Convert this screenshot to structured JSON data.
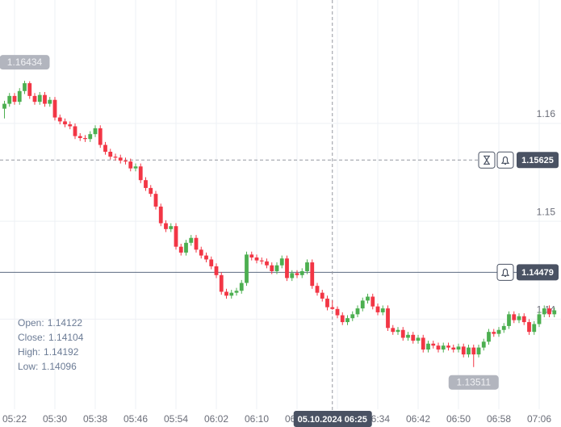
{
  "chart_data": {
    "type": "candlestick",
    "categories": [
      null,
      null,
      "05:22",
      null,
      null,
      null,
      null,
      null,
      null,
      null,
      "05:30",
      null,
      null,
      null,
      null,
      null,
      null,
      null,
      "05:38",
      null,
      null,
      null,
      null,
      null,
      null,
      null,
      "05:46",
      null,
      null,
      null,
      null,
      null,
      null,
      null,
      "05:54",
      null,
      null,
      null,
      null,
      null,
      null,
      null,
      "06:02",
      null,
      null,
      null,
      null,
      null,
      null,
      null,
      "06:10",
      null,
      null,
      null,
      null,
      null,
      null,
      null,
      "06:18",
      null,
      null,
      null,
      null,
      null,
      null,
      null,
      "06:26",
      null,
      null,
      null,
      null,
      null,
      null,
      null,
      "06:34",
      null,
      null,
      null,
      null,
      null,
      null,
      null,
      "06:42",
      null,
      null,
      null,
      null,
      null,
      null,
      null,
      "06:50",
      null,
      null,
      null,
      null,
      null,
      null,
      null,
      "06:58",
      null,
      null,
      null,
      null,
      null,
      null,
      null,
      "07:06",
      null,
      null,
      null
    ],
    "open": [
      1.1615,
      1.162,
      1.1628,
      1.1622,
      1.1633,
      1.1641,
      1.1628,
      1.1622,
      1.1629,
      1.162,
      1.1624,
      1.1606,
      1.1602,
      1.1599,
      1.1597,
      1.1587,
      1.1585,
      1.1584,
      1.1589,
      1.1595,
      1.1578,
      1.1571,
      1.1566,
      1.1565,
      1.1562,
      1.1561,
      1.1554,
      1.1556,
      1.1542,
      1.1534,
      1.1528,
      1.1515,
      1.1498,
      1.1492,
      1.1495,
      1.1474,
      1.1468,
      1.1478,
      1.1483,
      1.1471,
      1.1465,
      1.1461,
      1.1454,
      1.1445,
      1.1428,
      1.1424,
      1.1427,
      1.1429,
      1.1437,
      1.1466,
      1.1463,
      1.146,
      1.1459,
      1.1455,
      1.1449,
      1.1455,
      1.1462,
      1.1442,
      1.1447,
      1.1445,
      1.1449,
      1.1458,
      1.1434,
      1.1427,
      1.1421,
      1.14122,
      1.14104,
      1.1404,
      1.1397,
      1.1401,
      1.1405,
      1.1411,
      1.1419,
      1.1423,
      1.1413,
      1.1407,
      1.1411,
      1.1391,
      1.1387,
      1.1389,
      1.1381,
      1.1384,
      1.1378,
      1.1381,
      1.1369,
      1.1375,
      1.1373,
      1.1369,
      1.1373,
      1.1371,
      1.1369,
      1.1372,
      1.1364,
      1.1371,
      1.1364,
      1.1371,
      1.1377,
      1.1387,
      1.1385,
      1.1389,
      1.1393,
      1.1405,
      1.1399,
      1.1403,
      1.1397,
      1.1387,
      1.1395,
      1.1405,
      1.1411,
      1.1405
    ],
    "high": [
      1.1623,
      1.1631,
      1.1631,
      1.1636,
      1.16434,
      1.1643,
      1.1631,
      1.1632,
      1.1632,
      1.1627,
      1.1627,
      1.1609,
      1.1605,
      1.1602,
      1.16,
      1.159,
      1.1588,
      1.1592,
      1.1598,
      1.1598,
      1.1581,
      1.1574,
      1.1569,
      1.1568,
      1.1565,
      1.1564,
      1.1559,
      1.1559,
      1.1545,
      1.1537,
      1.1531,
      1.1518,
      1.1501,
      1.1498,
      1.1498,
      1.1477,
      1.1481,
      1.1486,
      1.1486,
      1.1474,
      1.1468,
      1.1464,
      1.1457,
      1.1448,
      1.1431,
      1.143,
      1.1432,
      1.144,
      1.1469,
      1.1469,
      1.1466,
      1.1463,
      1.1462,
      1.1458,
      1.1458,
      1.1465,
      1.1465,
      1.145,
      1.145,
      1.1452,
      1.1461,
      1.1461,
      1.1437,
      1.143,
      1.1424,
      1.14192,
      1.1413,
      1.1407,
      1.1404,
      1.1408,
      1.1414,
      1.1422,
      1.1426,
      1.1426,
      1.1416,
      1.1414,
      1.1414,
      1.1394,
      1.1392,
      1.1392,
      1.1387,
      1.1387,
      1.1384,
      1.1384,
      1.1378,
      1.1378,
      1.1376,
      1.1376,
      1.1376,
      1.1374,
      1.1375,
      1.1375,
      1.1374,
      1.1374,
      1.1374,
      1.138,
      1.139,
      1.139,
      1.1392,
      1.1396,
      1.1408,
      1.1408,
      1.1406,
      1.1406,
      1.14,
      1.1398,
      1.1408,
      1.1414,
      1.1414,
      1.1412
    ],
    "low": [
      1.1605,
      1.1617,
      1.1619,
      1.1619,
      1.163,
      1.1625,
      1.1619,
      1.1619,
      1.1617,
      1.1617,
      1.1603,
      1.1599,
      1.1596,
      1.1594,
      1.1584,
      1.1582,
      1.1581,
      1.1581,
      1.1586,
      1.1575,
      1.1568,
      1.1563,
      1.1562,
      1.1559,
      1.1558,
      1.1551,
      1.1551,
      1.1539,
      1.1531,
      1.1525,
      1.1512,
      1.1495,
      1.1489,
      1.1489,
      1.1471,
      1.1465,
      1.1465,
      1.1475,
      1.1468,
      1.1462,
      1.1458,
      1.1451,
      1.1442,
      1.1425,
      1.1421,
      1.1421,
      1.1424,
      1.1426,
      1.1434,
      1.146,
      1.1457,
      1.1456,
      1.1452,
      1.1446,
      1.1446,
      1.1452,
      1.1439,
      1.1439,
      1.1442,
      1.1442,
      1.1446,
      1.1431,
      1.1424,
      1.1418,
      1.1409,
      1.14096,
      1.1401,
      1.1394,
      1.1394,
      1.1398,
      1.1402,
      1.1408,
      1.1416,
      1.141,
      1.1404,
      1.1404,
      1.1388,
      1.1384,
      1.1384,
      1.1378,
      1.1378,
      1.1375,
      1.1375,
      1.1366,
      1.1366,
      1.137,
      1.1366,
      1.1366,
      1.1368,
      1.1366,
      1.1366,
      1.1361,
      1.1361,
      1.13511,
      1.1361,
      1.1368,
      1.1374,
      1.1382,
      1.1382,
      1.1386,
      1.139,
      1.1396,
      1.1396,
      1.1394,
      1.1384,
      1.1384,
      1.1392,
      1.1402,
      1.1402,
      1.1402
    ],
    "close": [
      1.162,
      1.1628,
      1.1622,
      1.1633,
      1.1641,
      1.1628,
      1.1622,
      1.1629,
      1.162,
      1.1624,
      1.1606,
      1.1602,
      1.1599,
      1.1597,
      1.1587,
      1.1585,
      1.1584,
      1.1589,
      1.1595,
      1.1578,
      1.1571,
      1.1566,
      1.1565,
      1.1562,
      1.1561,
      1.1554,
      1.1556,
      1.1542,
      1.1534,
      1.1528,
      1.1515,
      1.1498,
      1.1492,
      1.1495,
      1.1474,
      1.1468,
      1.1478,
      1.1483,
      1.1471,
      1.1465,
      1.1461,
      1.1454,
      1.1445,
      1.1428,
      1.1424,
      1.1427,
      1.1429,
      1.1437,
      1.1466,
      1.1463,
      1.146,
      1.1459,
      1.1455,
      1.1449,
      1.1455,
      1.1462,
      1.1442,
      1.1447,
      1.1445,
      1.1449,
      1.1458,
      1.1434,
      1.1427,
      1.1421,
      1.14122,
      1.14104,
      1.1404,
      1.1397,
      1.1401,
      1.1405,
      1.1411,
      1.1419,
      1.1423,
      1.1413,
      1.1407,
      1.1411,
      1.1391,
      1.1387,
      1.1389,
      1.1381,
      1.1384,
      1.1378,
      1.1381,
      1.1369,
      1.1375,
      1.1373,
      1.1369,
      1.1373,
      1.1371,
      1.1369,
      1.1372,
      1.1364,
      1.1371,
      1.1364,
      1.1371,
      1.1377,
      1.1387,
      1.1385,
      1.1389,
      1.1393,
      1.1405,
      1.1399,
      1.1403,
      1.1397,
      1.1387,
      1.1395,
      1.1405,
      1.1411,
      1.1405,
      1.1409
    ],
    "up_color": "#4caf50",
    "down_color": "#f23645",
    "ylim": [
      1.1308,
      1.1726
    ],
    "yticks": [
      1.14,
      1.15,
      1.16
    ],
    "grid": true,
    "high_label": "1.16434",
    "low_label": "1.13511",
    "crosshair": {
      "price": 1.15625,
      "time_label": "05.10.2024 06:25"
    },
    "alert_price": 1.14479,
    "ohlc_info": [
      {
        "label": "Open:",
        "value": 1.14122
      },
      {
        "label": "Close:",
        "value": 1.14104
      },
      {
        "label": "High:",
        "value": 1.14192
      },
      {
        "label": "Low:",
        "value": 1.14096
      }
    ]
  }
}
